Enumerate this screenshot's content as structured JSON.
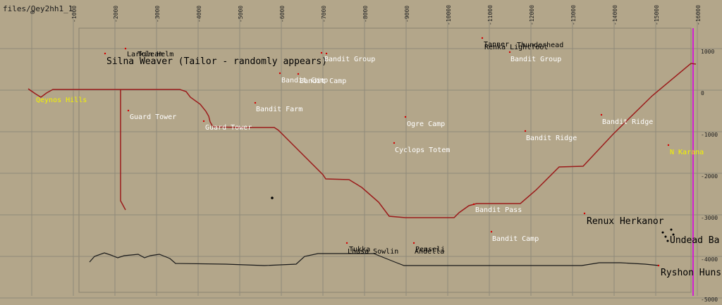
{
  "title": "files/Qey2hh1_1",
  "colors": {
    "background": "#b3a68a",
    "grid": "#8f8a7a",
    "border": "#8a8270",
    "path": "#9b1b1b",
    "wall": "#1a1a1a",
    "zone_label": "#f2f200",
    "poi_label": "#ffffff",
    "marker": "#d40000",
    "magenta_line": "#d020d0"
  },
  "axes": {
    "x_labels": [
      "0",
      "-1000",
      "-2000",
      "-3000",
      "-4000",
      "-5000",
      "-6000",
      "-7000",
      "-8000",
      "-9000",
      "-10000",
      "-11000",
      "-12000",
      "-13000",
      "-14000",
      "-15000",
      "-16000"
    ],
    "y_labels": [
      "1000",
      "0",
      "-1000",
      "-2000",
      "-3000",
      "-4000",
      "-5000"
    ]
  },
  "labels": {
    "silna": "Silna Weaver (Tailor - randomly appears)",
    "larkin": "Larkin Helm",
    "tolean": "Tolean",
    "bandit_group_1": "Bandit Group",
    "bandit_group_2": "Bandit Group",
    "bandit_camp_1": "Bandit Camp",
    "bandit_camp_2": "Bandit Camp",
    "bandit_farm": "Bandit Farm",
    "guard_tower_1": "Guard Tower",
    "guard_tower_2": "Guard Tower",
    "qeynos_hills": "Qeynos Hills",
    "ogre_camp": "Ogre Camp",
    "cyclops_totem": "Cyclops Totem",
    "bandit_ridge_1": "Bandit Ridge",
    "bandit_ridge_2": "Bandit Ridge",
    "n_karana": "N Karana",
    "bandit_pass": "Bandit Pass",
    "bandit_camp_3": "Bandit Camp",
    "renux": "Renux Herkanor",
    "undead": "Undead Ba",
    "ryshon": "Ryshon Huns",
    "tukka": "Tukka",
    "lhasa_sowlin": "Lhasa Sowlin",
    "penseli": "Penseli",
    "andella": "Andella",
    "tanner": "Tanner",
    "thunderhead": "Thunderhead",
    "renka_lightfoot": "Renka Lightfoot"
  }
}
